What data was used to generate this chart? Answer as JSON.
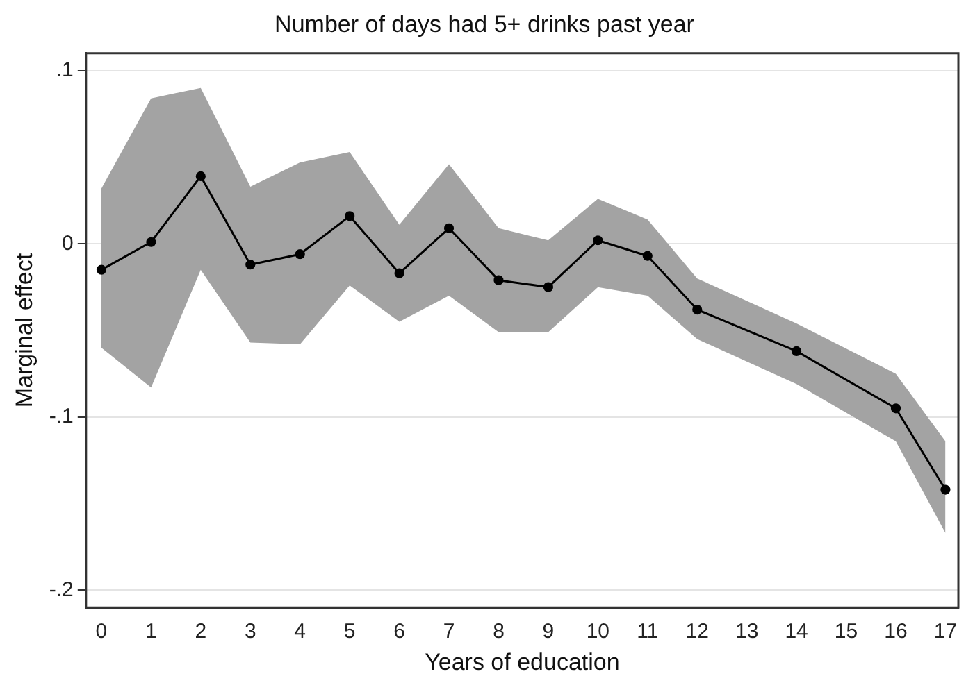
{
  "chart_data": {
    "type": "line",
    "title": "Number of days had 5+ drinks past year",
    "xlabel": "Years of education",
    "ylabel": "Marginal effect",
    "xlim": [
      -0.31,
      17.26
    ],
    "xticks": [
      0,
      1,
      2,
      3,
      4,
      5,
      6,
      7,
      8,
      9,
      10,
      11,
      12,
      13,
      14,
      15,
      16,
      17
    ],
    "ylim": [
      -0.21,
      0.11
    ],
    "yticks": [
      {
        "value": -0.2,
        "label": "-.2"
      },
      {
        "value": -0.1,
        "label": "-.1"
      },
      {
        "value": 0,
        "label": "0"
      },
      {
        "value": 0.1,
        "label": ".1"
      }
    ],
    "grid": "y",
    "legend": false,
    "marker": "circle",
    "line_style": "solid",
    "series": [
      {
        "color": "#000000",
        "x": [
          0,
          1,
          2,
          3,
          4,
          5,
          6,
          7,
          8,
          9,
          10,
          11,
          12,
          14,
          16,
          17
        ],
        "values": [
          -0.015,
          0.001,
          0.039,
          -0.012,
          -0.006,
          0.016,
          -0.017,
          0.009,
          -0.021,
          -0.025,
          0.002,
          -0.007,
          -0.038,
          -0.062,
          -0.095,
          -0.142
        ],
        "lower": [
          -0.06,
          -0.083,
          -0.015,
          -0.057,
          -0.058,
          -0.024,
          -0.045,
          -0.03,
          -0.051,
          -0.051,
          -0.025,
          -0.03,
          -0.055,
          -0.081,
          -0.114,
          -0.167
        ],
        "upper": [
          0.032,
          0.084,
          0.09,
          0.033,
          0.047,
          0.053,
          0.011,
          0.046,
          0.009,
          0.002,
          0.026,
          0.014,
          -0.02,
          -0.046,
          -0.075,
          -0.114
        ]
      }
    ]
  }
}
